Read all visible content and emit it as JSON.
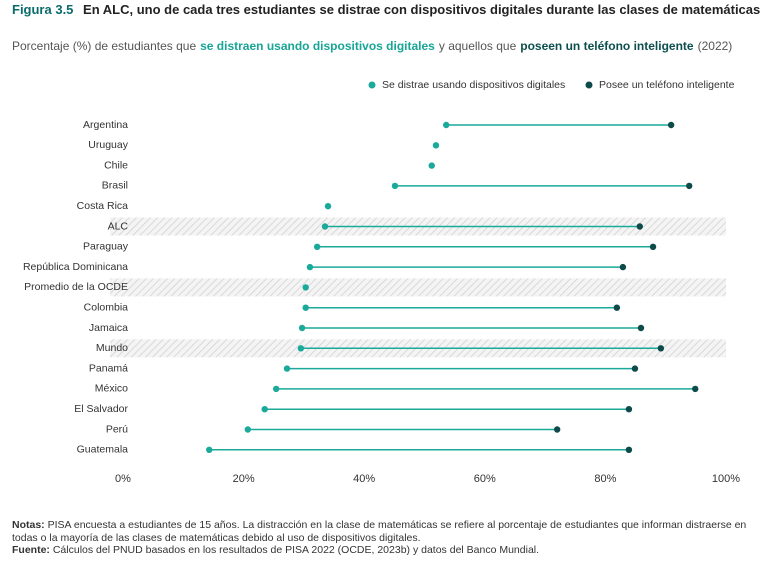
{
  "chart_data": {
    "type": "dumbbell",
    "figure_label": "Figura 3.5",
    "title": "En ALC, uno de cada tres estudiantes se distrae con dispositivos digitales durante las clases de matemáticas",
    "subtitle": [
      {
        "text": "Porcentaje (%) de estudiantes que",
        "bold": false,
        "color": "#555555"
      },
      {
        "text": "se distraen usando dispositivos digitales",
        "bold": true,
        "color": "#17a596"
      },
      {
        "text": "y aquellos que",
        "bold": false,
        "color": "#555555"
      },
      {
        "text": "poseen un teléfono inteligente",
        "bold": true,
        "color": "#0d4f4f"
      },
      {
        "text": "(2022)",
        "bold": false,
        "color": "#555555"
      }
    ],
    "categories": [
      "Argentina",
      "Uruguay",
      "Chile",
      "Brasil",
      "Costa Rica",
      "ALC",
      "Paraguay",
      "República Dominicana",
      "Promedio de la OCDE",
      "Colombia",
      "Jamaica",
      "Mundo",
      "Panamá",
      "México",
      "El Salvador",
      "Perú",
      "Guatemala"
    ],
    "highlight": [
      5,
      8,
      11
    ],
    "series": [
      {
        "name": "Se distrae usando dispositivos digitales",
        "color": "#1aa99a",
        "values": [
          53.6,
          51.9,
          51.2,
          45.1,
          34.0,
          33.5,
          32.2,
          31.0,
          30.3,
          30.3,
          29.7,
          29.5,
          27.2,
          25.4,
          23.5,
          20.7,
          14.3
        ]
      },
      {
        "name": "Posee un teléfono inteligente",
        "color": "#0d4a4a",
        "values": [
          90.9,
          null,
          null,
          93.9,
          null,
          85.7,
          87.9,
          82.9,
          null,
          81.9,
          85.9,
          89.2,
          84.9,
          94.9,
          83.9,
          72.0,
          83.9
        ]
      }
    ],
    "xlim": [
      0,
      100
    ],
    "xticks": [
      {
        "value": 0,
        "label": "0%"
      },
      {
        "value": 20,
        "label": "20%"
      },
      {
        "value": 40,
        "label": "40%"
      },
      {
        "value": 60,
        "label": "60%"
      },
      {
        "value": 80,
        "label": "80%"
      },
      {
        "value": 100,
        "label": "100%"
      }
    ]
  },
  "notes": {
    "notes_label": "Notas:",
    "notes_text": "PISA encuesta a estudiantes de 15 años. La distracción en la clase de matemáticas se refiere al porcentaje de estudiantes que informan distraerse en todas o la mayoría de las clases de matemáticas debido al uso de dispositivos digitales.",
    "source_label": "Fuente:",
    "source_text": "Cálculos del PNUD basados en los resultados de PISA 2022 (OCDE, 2023b) y datos del Banco Mundial."
  }
}
